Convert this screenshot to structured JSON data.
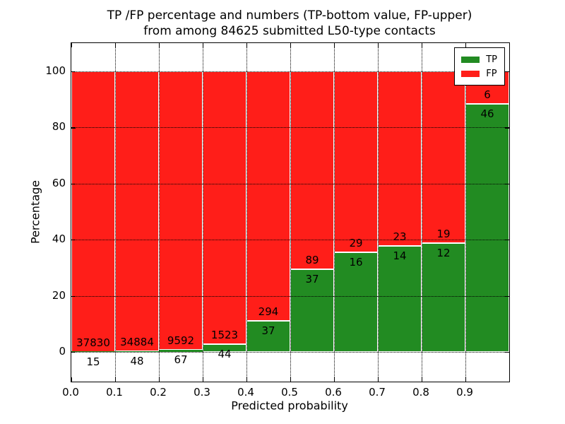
{
  "colors": {
    "tp_green": "#228b22",
    "fp_red": "#ff1e19",
    "grid": "#000000",
    "spine": "#000000",
    "background": "#ffffff",
    "text": "#000000",
    "bar_edge": "#ffffff",
    "legend_border": "#000000"
  },
  "chart_data": {
    "type": "bar",
    "stacked": true,
    "title_line1": "TP /FP percentage and numbers (TP-bottom value, FP-upper)",
    "title_line2": "from among 84625 submitted L50-type contacts",
    "xlabel": "Predicted probability",
    "ylabel": "Percentage",
    "total_submitted_contacts": 84625,
    "x_tick_labels": [
      "0.0",
      "0.1",
      "0.2",
      "0.3",
      "0.4",
      "0.5",
      "0.6",
      "0.7",
      "0.8",
      "0.9"
    ],
    "y_tick_values": [
      0,
      20,
      40,
      60,
      80,
      100
    ],
    "xlim": [
      0.0,
      1.0
    ],
    "ylim": [
      -10.6,
      110.1
    ],
    "grid": "dotted",
    "bar_units": "percent of bin stacked to 100",
    "legend": {
      "position": "upper-right",
      "entries": [
        {
          "label": "TP",
          "color": "#228b22"
        },
        {
          "label": "FP",
          "color": "#ff1e19"
        }
      ]
    },
    "bars": [
      {
        "bin_start": 0.0,
        "bin_end": 0.1,
        "tp": 15,
        "fp": 37830
      },
      {
        "bin_start": 0.1,
        "bin_end": 0.2,
        "tp": 48,
        "fp": 34884
      },
      {
        "bin_start": 0.2,
        "bin_end": 0.3,
        "tp": 67,
        "fp": 9592
      },
      {
        "bin_start": 0.3,
        "bin_end": 0.4,
        "tp": 44,
        "fp": 1523
      },
      {
        "bin_start": 0.4,
        "bin_end": 0.5,
        "tp": 37,
        "fp": 294
      },
      {
        "bin_start": 0.5,
        "bin_end": 0.6,
        "tp": 37,
        "fp": 89
      },
      {
        "bin_start": 0.6,
        "bin_end": 0.7,
        "tp": 16,
        "fp": 29
      },
      {
        "bin_start": 0.7,
        "bin_end": 0.8,
        "tp": 14,
        "fp": 23
      },
      {
        "bin_start": 0.8,
        "bin_end": 0.9,
        "tp": 12,
        "fp": 19
      },
      {
        "bin_start": 0.9,
        "bin_end": 1.0,
        "tp": 46,
        "fp": 6
      }
    ]
  }
}
